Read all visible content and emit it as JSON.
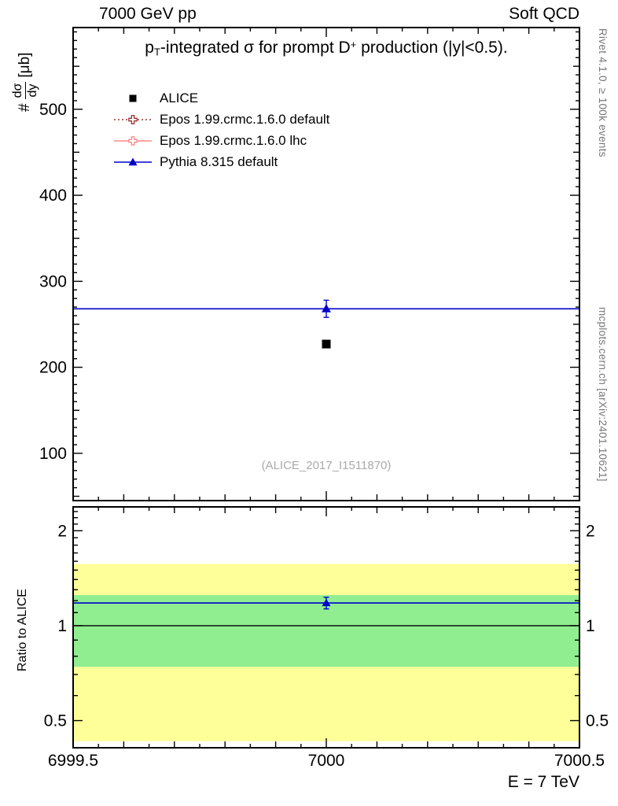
{
  "header": {
    "left": "7000 GeV pp",
    "right": "Soft QCD"
  },
  "title": {
    "parts": [
      "p",
      "T",
      "-integrated ",
      "σ",
      " for prompt D",
      "+",
      " production (|y|<0.5)."
    ]
  },
  "axes": {
    "ylabel": {
      "prefix": "#",
      "numerator": "dσ",
      "denominator": "dy",
      "units": "[μb]"
    },
    "ratio_ylabel": "Ratio to ALICE",
    "xlabel": "E = 7 TeV"
  },
  "legend": {
    "entries": [
      {
        "label": "ALICE",
        "marker": "filled-square",
        "color": "#000000",
        "line": "none"
      },
      {
        "label": "Epos 1.99.crmc.1.6.0 default",
        "marker": "open-cross",
        "color": "#993333",
        "line": "dotted"
      },
      {
        "label": "Epos 1.99.crmc.1.6.0 lhc",
        "marker": "open-cross",
        "color": "#ff8888",
        "line": "solid"
      },
      {
        "label": "Pythia 8.315 default",
        "marker": "filled-triangle",
        "color": "#0000cc",
        "line": "solid"
      }
    ]
  },
  "side_notes": {
    "right_top": "Rivet 4.1.0, ≥ 100k events",
    "right_bottom": "mcplots.cern.ch [arXiv:2401.10621]"
  },
  "watermark": "(ALICE_2017_I1511870)",
  "chart_data": {
    "type": "line",
    "title": "p_T-integrated σ for prompt D+ production (|y|<0.5).",
    "xlabel": "E = 7 TeV",
    "ylabel": "# dσ/dy [μb]",
    "xlim": [
      6999.5,
      7000.5
    ],
    "x_ticks": [
      {
        "v": 6999.5,
        "label": "6999.5"
      },
      {
        "v": 7000,
        "label": "7000"
      },
      {
        "v": 7000.5,
        "label": "7000.5"
      }
    ],
    "main_panel": {
      "scale": "linear",
      "ylim": [
        45,
        595
      ],
      "y_ticks": [
        {
          "v": 100,
          "label": "100"
        },
        {
          "v": 200,
          "label": "200"
        },
        {
          "v": 300,
          "label": "300"
        },
        {
          "v": 400,
          "label": "400"
        },
        {
          "v": 500,
          "label": "500"
        }
      ],
      "series": [
        {
          "name": "ALICE",
          "type": "marker",
          "marker": "square",
          "color": "#000000",
          "x": 7000,
          "y": 227
        },
        {
          "name": "Epos 1.99.crmc.1.6.0 default",
          "type": "line",
          "style": "dotted",
          "color": "#993333",
          "y": null
        },
        {
          "name": "Epos 1.99.crmc.1.6.0 lhc",
          "type": "line",
          "style": "solid",
          "color": "#ff8888",
          "y": null
        },
        {
          "name": "Pythia 8.315 default",
          "type": "line",
          "style": "solid",
          "color": "#0000cc",
          "y": 268,
          "marker": "triangle",
          "marker_x": 7000,
          "yerr": 10
        }
      ]
    },
    "ratio_panel": {
      "scale": "log",
      "ylim": [
        0.41,
        2.38
      ],
      "y_ticks": [
        {
          "v": 0.5,
          "label": "0.5"
        },
        {
          "v": 1,
          "label": "1"
        },
        {
          "v": 2,
          "label": "2"
        }
      ],
      "reference_line": 1,
      "bands": [
        {
          "name": "total-uncertainty-band",
          "color": "#ffff99",
          "lo": 0.43,
          "hi": 1.57
        },
        {
          "name": "stat-uncertainty-band",
          "color": "#90ee90",
          "lo": 0.74,
          "hi": 1.25
        }
      ],
      "series": [
        {
          "name": "Pythia 8.315 default",
          "color": "#0000cc",
          "y": 1.18,
          "marker_x": 7000,
          "yerr": 0.05
        }
      ]
    }
  }
}
